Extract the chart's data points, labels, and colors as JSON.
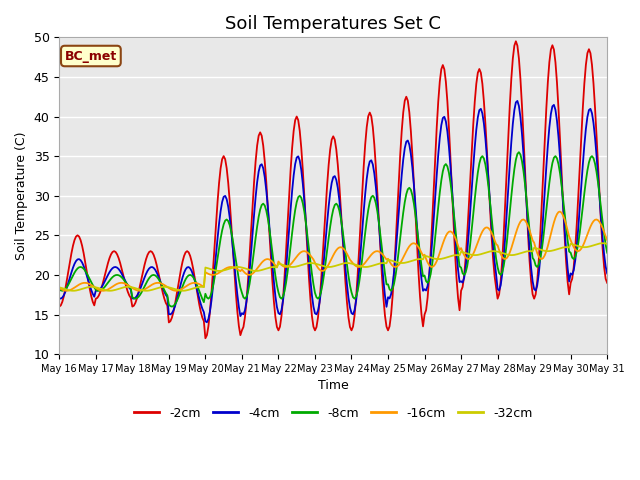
{
  "title": "Soil Temperatures Set C",
  "xlabel": "Time",
  "ylabel": "Soil Temperature (C)",
  "ylim": [
    10,
    50
  ],
  "annotation": "BC_met",
  "legend_labels": [
    "-2cm",
    "-4cm",
    "-8cm",
    "-16cm",
    "-32cm"
  ],
  "legend_colors": [
    "#dd0000",
    "#0000cc",
    "#00aa00",
    "#ff9900",
    "#cccc00"
  ],
  "background_color": "#e8e8e8",
  "x_tick_labels": [
    "May 16",
    "May 17",
    "May 18",
    "May 19",
    "May 20",
    "May 21",
    "May 22",
    "May 23",
    "May 24",
    "May 25",
    "May 26",
    "May 27",
    "May 28",
    "May 29",
    "May 30",
    "May 31"
  ],
  "title_fontsize": 13,
  "axis_label_fontsize": 9,
  "yticks": [
    10,
    15,
    20,
    25,
    30,
    35,
    40,
    45,
    50
  ]
}
